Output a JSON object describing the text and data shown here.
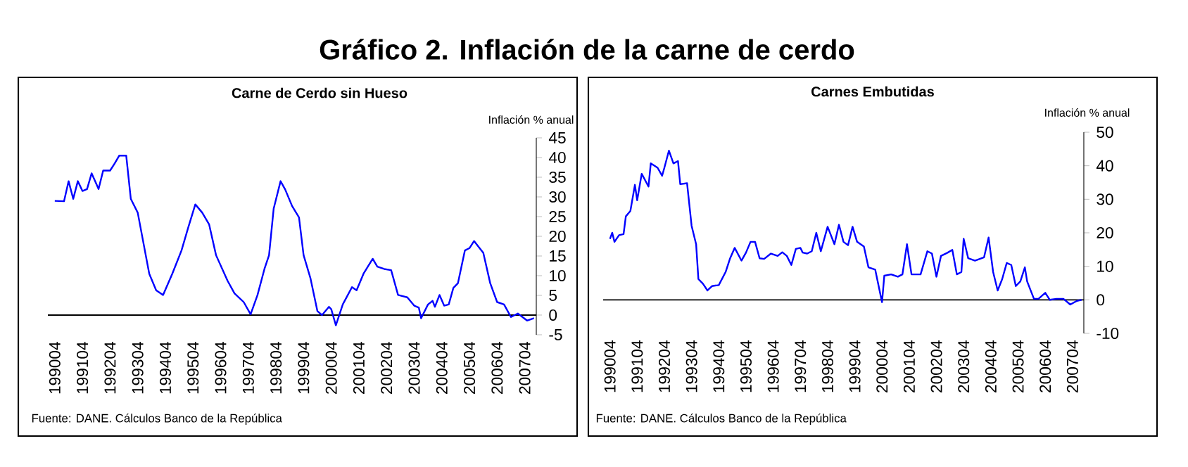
{
  "chart_data": [
    {
      "type": "line",
      "title": "Gráfico 2. Inflación de la carne de cerdo",
      "subtitle": "Carne de Cerdo sin Hueso",
      "ylabel": "Inflación % anual",
      "annotations": [
        "Fuente: DANE. Cálculos Banco de la República"
      ],
      "color": "#0000ff",
      "x": [
        "1990-04",
        "1990-08",
        "1990-10",
        "1990-12",
        "1991-02",
        "1991-04",
        "1991-06",
        "1991-08",
        "1991-11",
        "1992-01",
        "1992-04",
        "1992-06",
        "1992-08",
        "1992-11",
        "1993-01",
        "1993-04",
        "1993-09",
        "1993-12",
        "1994-03",
        "1994-07",
        "1994-11",
        "1995-02",
        "1995-05",
        "1995-08",
        "1995-11",
        "1996-02",
        "1996-07",
        "1996-10",
        "1997-02",
        "1997-05",
        "1997-08",
        "1997-11",
        "1998-01",
        "1998-03",
        "1998-06",
        "1998-08",
        "1998-11",
        "1999-02",
        "1999-04",
        "1999-07",
        "1999-10",
        "1999-12",
        "2000-03",
        "2000-04",
        "2000-06",
        "2000-09",
        "2001-01",
        "2001-03",
        "2001-06",
        "2001-10",
        "2001-12",
        "2002-03",
        "2002-06",
        "2002-09",
        "2003-01",
        "2003-04",
        "2003-06",
        "2003-07",
        "2003-10",
        "2003-12",
        "2004-01",
        "2004-03",
        "2004-05",
        "2004-07",
        "2004-09",
        "2004-11",
        "2005-02",
        "2005-04",
        "2005-06",
        "2005-10",
        "2006-01",
        "2006-04",
        "2006-07",
        "2006-10",
        "2007-01",
        "2007-05",
        "2007-08"
      ],
      "values": [
        29,
        28.9,
        34,
        29.5,
        34,
        31.5,
        32,
        36,
        32,
        36.7,
        36.7,
        38.5,
        40.5,
        40.5,
        29.5,
        26,
        10.5,
        6.3,
        5.1,
        10.5,
        16.4,
        22.4,
        28.1,
        26,
        23,
        15.2,
        8.7,
        5.5,
        3.3,
        0.2,
        5.1,
        11.7,
        15.2,
        27,
        34,
        31.9,
        27.7,
        24.8,
        15.2,
        9.3,
        1,
        0,
        2.1,
        1.5,
        -2.6,
        2.7,
        7.1,
        6.3,
        10.5,
        14.3,
        12.3,
        11.7,
        11.4,
        5.1,
        4.5,
        2.4,
        1.9,
        -0.8,
        2.7,
        3.6,
        2.1,
        5.1,
        2.4,
        2.7,
        6.9,
        8.1,
        16.4,
        17,
        18.8,
        15.8,
        8.1,
        3.3,
        2.7,
        -0.5,
        0.4,
        -1.4,
        -0.8
      ],
      "xlim": [
        "1990-01",
        "2007-09"
      ],
      "ylim": [
        -5,
        45
      ],
      "yticks": [
        -5,
        0,
        5,
        10,
        15,
        20,
        25,
        30,
        35,
        40,
        45
      ],
      "xticks": [
        {
          "value": "1990-04",
          "label": "199004"
        },
        {
          "value": "1991-04",
          "label": "199104"
        },
        {
          "value": "1992-04",
          "label": "199204"
        },
        {
          "value": "1993-04",
          "label": "199304"
        },
        {
          "value": "1994-04",
          "label": "199404"
        },
        {
          "value": "1995-04",
          "label": "199504"
        },
        {
          "value": "1996-04",
          "label": "199604"
        },
        {
          "value": "1997-04",
          "label": "199704"
        },
        {
          "value": "1998-04",
          "label": "199804"
        },
        {
          "value": "1999-04",
          "label": "199904"
        },
        {
          "value": "2000-04",
          "label": "200004"
        },
        {
          "value": "2001-04",
          "label": "200104"
        },
        {
          "value": "2002-04",
          "label": "200204"
        },
        {
          "value": "2003-04",
          "label": "200304"
        },
        {
          "value": "2004-04",
          "label": "200404"
        },
        {
          "value": "2005-04",
          "label": "200504"
        },
        {
          "value": "2006-04",
          "label": "200604"
        },
        {
          "value": "2007-04",
          "label": "200704"
        }
      ]
    },
    {
      "type": "line",
      "title": "Carnes Embutidas",
      "ylabel": "Inflación % anual",
      "annotations": [
        "Fuente: DANE. Cálculos Banco de la República"
      ],
      "color": "#0000ff",
      "x": [
        "1990-04",
        "1990-05",
        "1990-06",
        "1990-08",
        "1990-10",
        "1990-11",
        "1991-01",
        "1991-03",
        "1991-04",
        "1991-06",
        "1991-09",
        "1991-10",
        "1992-01",
        "1992-03",
        "1992-04",
        "1992-06",
        "1992-08",
        "1992-10",
        "1992-11",
        "1993-02",
        "1993-04",
        "1993-06",
        "1993-07",
        "1993-09",
        "1993-11",
        "1994-01",
        "1994-04",
        "1994-07",
        "1994-09",
        "1994-11",
        "1995-02",
        "1995-04",
        "1995-06",
        "1995-08",
        "1995-10",
        "1995-12",
        "1996-03",
        "1996-06",
        "1996-08",
        "1996-10",
        "1996-12",
        "1997-02",
        "1997-04",
        "1997-05",
        "1997-07",
        "1997-09",
        "1997-11",
        "1998-01",
        "1998-04",
        "1998-07",
        "1998-09",
        "1998-11",
        "1999-01",
        "1999-03",
        "1999-05",
        "1999-08",
        "1999-10",
        "2000-01",
        "2000-04",
        "2000-05",
        "2000-08",
        "2000-11",
        "2001-01",
        "2001-03",
        "2001-05",
        "2001-09",
        "2001-12",
        "2002-02",
        "2002-04",
        "2002-06",
        "2002-09",
        "2002-11",
        "2003-01",
        "2003-03",
        "2003-04",
        "2003-06",
        "2003-09",
        "2004-01",
        "2004-03",
        "2004-05",
        "2004-07",
        "2004-09",
        "2004-11",
        "2005-01",
        "2005-03",
        "2005-05",
        "2005-07",
        "2005-08",
        "2005-11",
        "2006-01",
        "2006-04",
        "2006-06",
        "2006-09",
        "2006-12",
        "2007-03",
        "2007-06",
        "2007-08"
      ],
      "values": [
        18.2,
        20,
        17.3,
        19.3,
        19.6,
        24.9,
        26.5,
        34.3,
        29.7,
        37.6,
        33.8,
        40.7,
        39.4,
        37,
        39.4,
        44.5,
        40.7,
        41.4,
        34.5,
        34.8,
        22.1,
        16.6,
        6.2,
        4.8,
        2.8,
        4.1,
        4.4,
        8.3,
        12.4,
        15.5,
        11.7,
        14.1,
        17.3,
        17.3,
        12.4,
        12.2,
        13.8,
        13.1,
        14.2,
        13.1,
        10.4,
        15.2,
        15.5,
        14.1,
        13.8,
        14.5,
        20,
        14.5,
        21.8,
        16.6,
        22.4,
        17.3,
        16.3,
        21.8,
        17.3,
        15.9,
        9.7,
        9,
        -0.7,
        7.2,
        7.6,
        6.9,
        7.6,
        16.6,
        7.6,
        7.6,
        14.5,
        13.8,
        6.9,
        13.1,
        14.1,
        14.9,
        7.6,
        8.3,
        18.2,
        12.4,
        11.7,
        12.7,
        18.6,
        8.3,
        2.8,
        6.2,
        11,
        10.4,
        4.1,
        5.5,
        9.7,
        5.5,
        0.3,
        0.3,
        2.1,
        0,
        0.3,
        0.3,
        -1.4,
        -0.3,
        0
      ],
      "xlim": [
        "1990-01",
        "2007-09"
      ],
      "ylim": [
        -10,
        50
      ],
      "yticks": [
        -10,
        0,
        10,
        20,
        30,
        40,
        50
      ],
      "xticks": [
        {
          "value": "1990-04",
          "label": "199004"
        },
        {
          "value": "1991-04",
          "label": "199104"
        },
        {
          "value": "1992-04",
          "label": "199204"
        },
        {
          "value": "1993-04",
          "label": "199304"
        },
        {
          "value": "1994-04",
          "label": "199404"
        },
        {
          "value": "1995-04",
          "label": "199504"
        },
        {
          "value": "1996-04",
          "label": "199604"
        },
        {
          "value": "1997-04",
          "label": "199704"
        },
        {
          "value": "1998-04",
          "label": "199804"
        },
        {
          "value": "1999-04",
          "label": "199904"
        },
        {
          "value": "2000-04",
          "label": "200004"
        },
        {
          "value": "2001-04",
          "label": "200104"
        },
        {
          "value": "2002-04",
          "label": "200204"
        },
        {
          "value": "2003-04",
          "label": "200304"
        },
        {
          "value": "2004-04",
          "label": "200404"
        },
        {
          "value": "2005-04",
          "label": "200504"
        },
        {
          "value": "2006-04",
          "label": "200604"
        },
        {
          "value": "2007-04",
          "label": "200704"
        }
      ]
    }
  ]
}
